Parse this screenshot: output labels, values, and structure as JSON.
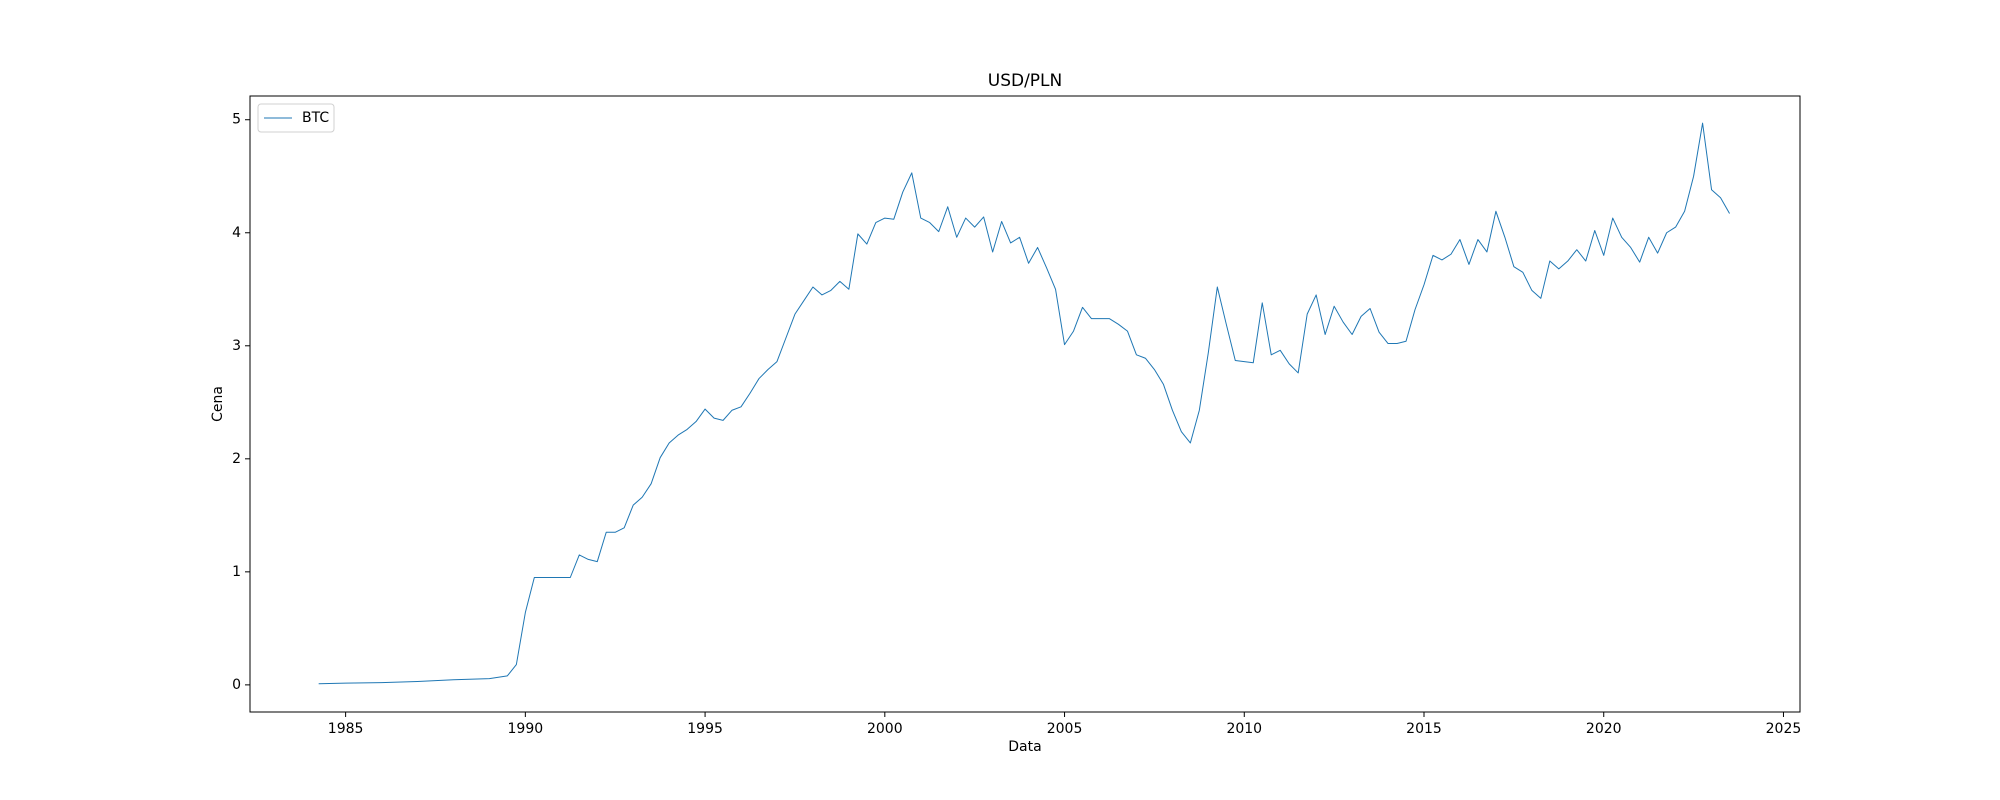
{
  "chart_data": {
    "type": "line",
    "title": "USD/PLN",
    "x_label": "Data",
    "y_label": "Cena",
    "x": [
      1984.25,
      1985,
      1986,
      1987,
      1988,
      1989,
      1989.5,
      1989.75,
      1990,
      1990.25,
      1991.25,
      1991.5,
      1991.75,
      1992,
      1992.25,
      1992.5,
      1992.75,
      1993,
      1993.25,
      1993.5,
      1993.75,
      1994,
      1994.25,
      1994.5,
      1994.75,
      1995,
      1995.25,
      1995.5,
      1995.75,
      1996,
      1996.25,
      1996.5,
      1996.75,
      1997,
      1997.25,
      1997.5,
      1997.75,
      1998,
      1998.25,
      1998.5,
      1998.75,
      1999,
      1999.25,
      1999.5,
      1999.75,
      2000,
      2000.25,
      2000.5,
      2000.75,
      2001,
      2001.25,
      2001.5,
      2001.75,
      2002,
      2002.25,
      2002.5,
      2002.75,
      2003,
      2003.25,
      2003.5,
      2003.75,
      2004,
      2004.25,
      2004.5,
      2004.75,
      2005,
      2005.25,
      2005.5,
      2005.75,
      2006.25,
      2006.5,
      2006.75,
      2007,
      2007.25,
      2007.5,
      2007.75,
      2008,
      2008.25,
      2008.5,
      2008.75,
      2009,
      2009.25,
      2009.5,
      2009.75,
      2010,
      2010.25,
      2010.5,
      2010.75,
      2011,
      2011.25,
      2011.5,
      2011.75,
      2012,
      2012.25,
      2012.5,
      2012.75,
      2013,
      2013.25,
      2013.5,
      2013.75,
      2014,
      2014.25,
      2014.5,
      2014.75,
      2015,
      2015.25,
      2015.5,
      2015.75,
      2016,
      2016.25,
      2016.5,
      2016.75,
      2017,
      2017.25,
      2017.5,
      2017.75,
      2018,
      2018.25,
      2018.5,
      2018.75,
      2019,
      2019.25,
      2019.5,
      2019.75,
      2020,
      2020.25,
      2020.5,
      2020.75,
      2021,
      2021.25,
      2021.5,
      2021.75,
      2022,
      2022.25,
      2022.5,
      2022.75,
      2023,
      2023.25,
      2023.5
    ],
    "series": [
      {
        "name": "BTC",
        "color": "#1f77b4",
        "values": [
          0.01,
          0.015,
          0.02,
          0.03,
          0.045,
          0.055,
          0.08,
          0.18,
          0.64,
          0.95,
          0.95,
          1.15,
          1.11,
          1.09,
          1.35,
          1.35,
          1.39,
          1.59,
          1.66,
          1.78,
          2.01,
          2.14,
          2.21,
          2.26,
          2.33,
          2.44,
          2.36,
          2.34,
          2.43,
          2.46,
          2.58,
          2.71,
          2.79,
          2.86,
          3.07,
          3.28,
          3.4,
          3.52,
          3.45,
          3.49,
          3.57,
          3.5,
          3.99,
          3.9,
          4.09,
          4.13,
          4.12,
          4.36,
          4.53,
          4.13,
          4.09,
          4.01,
          4.23,
          3.96,
          4.13,
          4.05,
          4.14,
          3.83,
          4.1,
          3.91,
          3.96,
          3.73,
          3.87,
          3.69,
          3.5,
          3.01,
          3.13,
          3.34,
          3.24,
          3.24,
          3.19,
          3.13,
          2.92,
          2.89,
          2.79,
          2.66,
          2.43,
          2.24,
          2.14,
          2.43,
          2.94,
          3.52,
          3.19,
          2.87,
          2.86,
          2.85,
          3.38,
          2.92,
          2.96,
          2.84,
          2.76,
          3.28,
          3.45,
          3.1,
          3.35,
          3.21,
          3.1,
          3.26,
          3.33,
          3.12,
          3.02,
          3.02,
          3.04,
          3.32,
          3.54,
          3.8,
          3.76,
          3.81,
          3.94,
          3.72,
          3.94,
          3.83,
          4.19,
          3.96,
          3.7,
          3.65,
          3.49,
          3.42,
          3.75,
          3.68,
          3.75,
          3.85,
          3.75,
          4.02,
          3.8,
          4.13,
          3.96,
          3.87,
          3.74,
          3.96,
          3.82,
          4.0,
          4.05,
          4.19,
          4.5,
          4.97,
          4.38,
          4.31,
          4.17
        ]
      }
    ],
    "xlim": [
      1982.34,
      2025.46
    ],
    "xticks": [
      1985,
      1990,
      1995,
      2000,
      2005,
      2010,
      2015,
      2020,
      2025
    ],
    "ylim": [
      -0.24,
      5.21
    ],
    "yticks": [
      0,
      1,
      2,
      3,
      4,
      5
    ],
    "legend": "upper left"
  }
}
